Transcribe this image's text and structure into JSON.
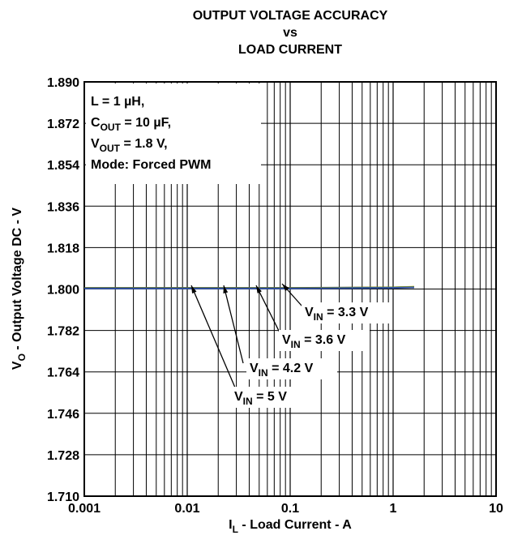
{
  "chart_data": {
    "type": "line",
    "title": [
      "OUTPUT VOLTAGE ACCURACY",
      "vs",
      "LOAD CURRENT"
    ],
    "x_label": {
      "main": "I",
      "sub": "L",
      "rest": " - Load Current - A"
    },
    "y_label": {
      "main": "V",
      "sub": "O",
      "rest": " - Output Voltage DC - V"
    },
    "log_x": true,
    "grid": true,
    "xlim": [
      0.001,
      10
    ],
    "xticks": [
      0.001,
      0.01,
      0.1,
      1,
      10
    ],
    "ylim": [
      1.71,
      1.89
    ],
    "yticks": [
      {
        "value": 1.71,
        "label": "1.710"
      },
      1.728,
      1.746,
      1.764,
      1.782,
      {
        "value": 1.8,
        "label": "1.800"
      },
      1.818,
      1.836,
      1.854,
      1.872,
      {
        "value": 1.89,
        "label": "1.890"
      }
    ],
    "note": [
      {
        "main": "L = 1 µH,"
      },
      {
        "main": "C",
        "sub": "OUT",
        "rest": " = 10 µF,"
      },
      {
        "main": "V",
        "sub": "OUT",
        "rest": " = 1.8 V,"
      },
      {
        "main": "Mode: Forced PWM"
      }
    ],
    "series": [
      {
        "label": {
          "main": "V",
          "sub": "IN",
          "rest": " = 3.3 V"
        },
        "color": "#333333",
        "x": [
          0.001,
          0.01,
          0.1,
          1,
          1.6
        ],
        "values": [
          1.8005,
          1.8005,
          1.8005,
          1.8007,
          1.8009
        ]
      },
      {
        "label": {
          "main": "V",
          "sub": "IN",
          "rest": " = 3.6 V"
        },
        "color": "#c8b400",
        "x": [
          0.001,
          0.01,
          0.1,
          1,
          1.6
        ],
        "values": [
          1.8004,
          1.8004,
          1.8004,
          1.8007,
          1.801
        ]
      },
      {
        "label": {
          "main": "V",
          "sub": "IN",
          "rest": " = 4.2 V"
        },
        "color": "#3a7a3a",
        "x": [
          0.001,
          0.01,
          0.1,
          1,
          1.6
        ],
        "values": [
          1.8003,
          1.8003,
          1.8003,
          1.8006,
          1.8008
        ]
      },
      {
        "label": {
          "main": "V",
          "sub": "IN",
          "rest": " = 5 V"
        },
        "color": "#3050a0",
        "x": [
          0.001,
          0.01,
          0.1,
          1,
          1.6
        ],
        "values": [
          1.8002,
          1.8002,
          1.8002,
          1.8005,
          1.8007
        ]
      }
    ]
  }
}
